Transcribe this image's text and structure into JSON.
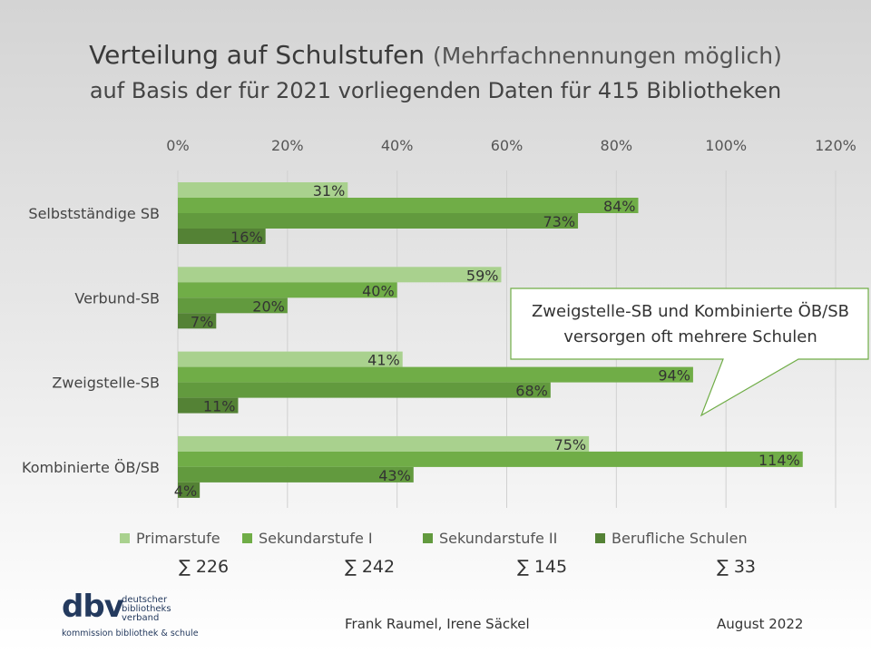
{
  "title": "Verteilung auf Schulstufen",
  "title_note": "(Mehrfachnennungen möglich)",
  "subtitle": "auf Basis der für 2021 vorliegenden Daten für 415 Bibliotheken",
  "chart_data": {
    "type": "bar",
    "orientation": "horizontal",
    "categories": [
      "Selbstständige SB",
      "Verbund-SB",
      "Zweigstelle-SB",
      "Kombinierte ÖB/SB"
    ],
    "series": [
      {
        "name": "Primarstufe",
        "values": [
          31,
          59,
          41,
          75
        ],
        "color": "#a9d18e"
      },
      {
        "name": "Sekundarstufe I",
        "values": [
          84,
          40,
          94,
          114
        ],
        "color": "#70ad47"
      },
      {
        "name": "Sekundarstufe II",
        "values": [
          73,
          20,
          68,
          43
        ],
        "color": "#629a3e"
      },
      {
        "name": "Berufliche Schulen",
        "values": [
          16,
          7,
          11,
          4
        ],
        "color": "#548235"
      }
    ],
    "xlim": [
      0,
      120
    ],
    "xticks": [
      "0%",
      "20%",
      "40%",
      "60%",
      "80%",
      "100%",
      "120%"
    ],
    "axis_position": "top",
    "grid": true,
    "legend": "bottom",
    "sums": [
      "∑ 226",
      "∑ 242",
      "∑ 145",
      "∑ 33"
    ]
  },
  "callout": {
    "line1": "Zweigstelle-SB und Kombinierte ÖB/SB",
    "line2": "versorgen oft mehrere Schulen"
  },
  "footer": {
    "authors": "Frank Raumel, Irene Säckel",
    "date": "August 2022"
  },
  "logo": {
    "mark": "dbv",
    "lines": [
      "deutscher",
      "bibliotheks",
      "verband"
    ],
    "sub": "kommission bibliothek & schule"
  }
}
